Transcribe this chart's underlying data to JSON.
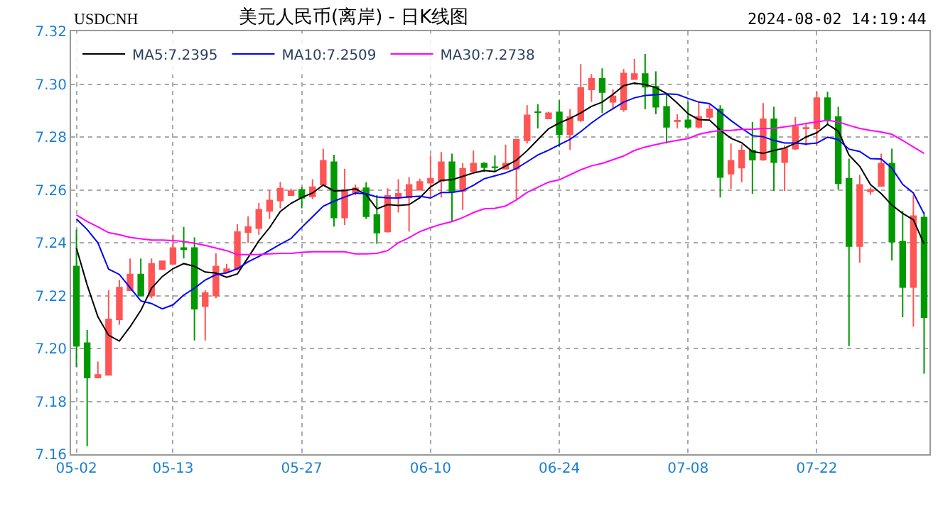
{
  "chart_data": {
    "type": "candlestick",
    "title": "美元人民币(离岸) - 日K线图",
    "subtitle": "USDCNH",
    "annotations": [
      "2024-08-02 14:19:44"
    ],
    "categories": [
      "05-02",
      null,
      null,
      null,
      null,
      null,
      null,
      null,
      null,
      "05-13",
      null,
      null,
      null,
      null,
      null,
      null,
      null,
      null,
      null,
      null,
      null,
      "05-27",
      null,
      null,
      null,
      null,
      null,
      null,
      null,
      null,
      null,
      null,
      null,
      "06-10",
      null,
      null,
      null,
      null,
      null,
      null,
      null,
      null,
      null,
      null,
      null,
      "06-24",
      null,
      null,
      null,
      null,
      null,
      null,
      null,
      null,
      null,
      null,
      null,
      "07-08",
      null,
      null,
      null,
      null,
      null,
      null,
      null,
      null,
      null,
      null,
      null,
      "07-22",
      null,
      null,
      null,
      null,
      null,
      null,
      null,
      null,
      null,
      null
    ],
    "ohlc": [
      [
        7.231,
        7.245,
        7.193,
        7.201
      ],
      [
        7.202,
        7.207,
        7.163,
        7.189
      ],
      [
        7.189,
        7.195,
        7.189,
        7.19
      ],
      [
        7.19,
        7.222,
        7.19,
        7.211
      ],
      [
        7.211,
        7.226,
        7.209,
        7.223
      ],
      [
        7.222,
        7.234,
        7.222,
        7.228
      ],
      [
        7.228,
        7.234,
        7.22,
        7.22
      ],
      [
        7.22,
        7.234,
        7.219,
        7.232
      ],
      [
        7.23,
        7.233,
        7.23,
        7.233
      ],
      [
        7.232,
        7.243,
        7.232,
        7.238
      ],
      [
        7.238,
        7.246,
        7.234,
        7.2375
      ],
      [
        7.238,
        7.242,
        7.203,
        7.215
      ],
      [
        7.216,
        7.222,
        7.203,
        7.221
      ],
      [
        7.22,
        7.236,
        7.219,
        7.231
      ],
      [
        7.229,
        7.232,
        7.229,
        7.23
      ],
      [
        7.23,
        7.247,
        7.2295,
        7.244
      ],
      [
        7.244,
        7.25,
        7.24,
        7.246
      ],
      [
        7.2455,
        7.255,
        7.243,
        7.2525
      ],
      [
        7.252,
        7.26,
        7.249,
        7.256
      ],
      [
        7.256,
        7.263,
        7.253,
        7.2605
      ],
      [
        7.258,
        7.2605,
        7.258,
        7.2595
      ],
      [
        7.26,
        7.261,
        7.253,
        7.257
      ],
      [
        7.2575,
        7.264,
        7.2565,
        7.261
      ],
      [
        7.262,
        7.2756,
        7.262,
        7.271
      ],
      [
        7.2705,
        7.2733,
        7.2461,
        7.2495
      ],
      [
        7.2495,
        7.268,
        7.2467,
        7.26
      ],
      [
        7.259,
        7.262,
        7.258,
        7.2606
      ],
      [
        7.2606,
        7.2629,
        7.249,
        7.25
      ],
      [
        7.2505,
        7.258,
        7.2396,
        7.2438
      ],
      [
        7.2442,
        7.2606,
        7.2438,
        7.2577
      ],
      [
        7.2575,
        7.264,
        7.2514,
        7.2585
      ],
      [
        7.2571,
        7.2648,
        7.2442,
        7.2619
      ],
      [
        7.26,
        7.2642,
        7.26,
        7.263
      ],
      [
        7.2627,
        7.273,
        7.2571,
        7.2642
      ],
      [
        7.2633,
        7.2743,
        7.2571,
        7.2705
      ],
      [
        7.2705,
        7.2737,
        7.2482,
        7.2596
      ],
      [
        7.2596,
        7.2701,
        7.2524,
        7.268
      ],
      [
        7.267,
        7.2749,
        7.267,
        7.2699
      ],
      [
        7.2699,
        7.2705,
        7.2667,
        7.2686
      ],
      [
        7.2686,
        7.273,
        7.2667,
        7.2685
      ],
      [
        7.268,
        7.2771,
        7.268,
        7.2699
      ],
      [
        7.268,
        7.2794,
        7.2566,
        7.279
      ],
      [
        7.2787,
        7.292,
        7.2775,
        7.2882
      ],
      [
        7.2894,
        7.2924,
        7.2832,
        7.2893
      ],
      [
        7.287,
        7.2895,
        7.2867,
        7.289
      ],
      [
        7.2893,
        7.2939,
        7.2762,
        7.281
      ],
      [
        7.281,
        7.2905,
        7.2752,
        7.2876
      ],
      [
        7.2863,
        7.3076,
        7.2857,
        7.2985
      ],
      [
        7.298,
        7.3038,
        7.2933,
        7.302
      ],
      [
        7.302,
        7.306,
        7.289,
        7.297
      ],
      [
        7.2933,
        7.298,
        7.2905,
        7.2954
      ],
      [
        7.2905,
        7.3057,
        7.2895,
        7.304
      ],
      [
        7.3019,
        7.3095,
        7.3019,
        7.3038
      ],
      [
        7.3038,
        7.3114,
        7.2905,
        7.299
      ],
      [
        7.299,
        7.3048,
        7.2886,
        7.2914
      ],
      [
        7.2914,
        7.2962,
        7.2775,
        7.2838
      ],
      [
        7.286,
        7.2886,
        7.2832,
        7.2862
      ],
      [
        7.2863,
        7.2933,
        7.2832,
        7.2838
      ],
      [
        7.2838,
        7.2933,
        7.2832,
        7.2876
      ],
      [
        7.2876,
        7.2924,
        7.2867,
        7.2905
      ],
      [
        7.2905,
        7.292,
        7.2571,
        7.2648
      ],
      [
        7.2661,
        7.2775,
        7.2604,
        7.271
      ],
      [
        7.2684,
        7.2771,
        7.2629,
        7.2749
      ],
      [
        7.2749,
        7.2857,
        7.2585,
        7.2714
      ],
      [
        7.2714,
        7.2928,
        7.271,
        7.2867
      ],
      [
        7.2867,
        7.2914,
        7.2596,
        7.2705
      ],
      [
        7.2705,
        7.2768,
        7.2596,
        7.2756
      ],
      [
        7.2756,
        7.2876,
        7.2752,
        7.2838
      ],
      [
        7.2832,
        7.2851,
        7.2768,
        7.2834
      ],
      [
        7.2832,
        7.2971,
        7.2768,
        7.2947
      ],
      [
        7.2947,
        7.2971,
        7.2848,
        7.2867
      ],
      [
        7.2876,
        7.2914,
        7.26,
        7.2625
      ],
      [
        7.2642,
        7.2718,
        7.2009,
        7.2387
      ],
      [
        7.2387,
        7.2657,
        7.2324,
        7.2619
      ],
      [
        7.2594,
        7.2609,
        7.2581,
        7.26
      ],
      [
        7.2615,
        7.2737,
        7.2615,
        7.2699
      ],
      [
        7.2699,
        7.2756,
        7.2333,
        7.2404
      ],
      [
        7.2404,
        7.252,
        7.2118,
        7.2232
      ],
      [
        7.2232,
        7.2581,
        7.2082,
        7.2501
      ],
      [
        7.2495,
        7.2514,
        7.1905,
        7.2118
      ]
    ],
    "colors": [
      "#009900",
      "#009900",
      "#ff5555",
      "#ff5555",
      "#ff5555",
      "#ff5555",
      "#009900",
      "#ff5555",
      "#ff5555",
      "#ff5555",
      "#009900",
      "#009900",
      "#ff5555",
      "#ff5555",
      "#ff5555",
      "#ff5555",
      "#ff5555",
      "#ff5555",
      "#ff5555",
      "#ff5555",
      "#ff5555",
      "#009900",
      "#ff5555",
      "#ff5555",
      "#009900",
      "#ff5555",
      "#ff5555",
      "#009900",
      "#009900",
      "#ff5555",
      "#ff5555",
      "#ff5555",
      "#ff5555",
      "#ff5555",
      "#ff5555",
      "#009900",
      "#ff5555",
      "#ff5555",
      "#009900",
      "#009900",
      "#ff5555",
      "#ff5555",
      "#ff5555",
      "#009900",
      "#ff5555",
      "#009900",
      "#ff5555",
      "#ff5555",
      "#ff5555",
      "#009900",
      "#ff5555",
      "#ff5555",
      "#ff5555",
      "#009900",
      "#009900",
      "#009900",
      "#ff5555",
      "#009900",
      "#ff5555",
      "#ff5555",
      "#009900",
      "#ff5555",
      "#ff5555",
      "#009900",
      "#ff5555",
      "#009900",
      "#ff5555",
      "#ff5555",
      "#ff5555",
      "#ff5555",
      "#009900",
      "#009900",
      "#009900",
      "#ff5555",
      "#ff5555",
      "#ff5555",
      "#009900",
      "#009900",
      "#ff5555",
      "#009900"
    ],
    "series": [
      {
        "name": "MA5:7.2395",
        "type": "line",
        "color": "#000000",
        "values": [
          7.238,
          7.224,
          7.212,
          7.205,
          7.2028,
          7.2082,
          7.2144,
          7.2228,
          7.2272,
          7.2302,
          7.2321,
          7.2311,
          7.2289,
          7.2285,
          7.2269,
          7.2282,
          7.2344,
          7.2407,
          7.2457,
          7.2518,
          7.2549,
          7.2571,
          7.2588,
          7.2618,
          7.2596,
          7.2597,
          7.2604,
          7.2582,
          7.2528,
          7.2544,
          7.2541,
          7.2544,
          7.257,
          7.2611,
          7.2636,
          7.2638,
          7.2651,
          7.2664,
          7.2673,
          7.2669,
          7.269,
          7.2712,
          7.2748,
          7.279,
          7.2831,
          7.2853,
          7.287,
          7.2891,
          7.2916,
          7.2932,
          7.2961,
          7.2994,
          7.3004,
          7.2998,
          7.2987,
          7.2964,
          7.2928,
          7.2888,
          7.2866,
          7.2864,
          7.2826,
          7.2795,
          7.2778,
          7.2745,
          7.2738,
          7.2749,
          7.2758,
          7.2776,
          7.28,
          7.2816,
          7.2848,
          7.2822,
          7.2732,
          7.2689,
          7.262,
          7.2586,
          7.2542,
          7.2511,
          7.2487,
          7.2395
        ]
      },
      {
        "name": "MA10:7.2509",
        "type": "line",
        "color": "#0000ff",
        "values": [
          7.249,
          7.245,
          7.24,
          7.23,
          7.228,
          7.223,
          7.218,
          7.217,
          7.215,
          7.2165,
          7.2202,
          7.2228,
          7.2259,
          7.2279,
          7.2286,
          7.2302,
          7.2328,
          7.2348,
          7.2371,
          7.2394,
          7.2416,
          7.2458,
          7.2498,
          7.2538,
          7.2557,
          7.2573,
          7.2588,
          7.2585,
          7.2573,
          7.257,
          7.2569,
          7.2574,
          7.2576,
          7.2569,
          7.259,
          7.259,
          7.2597,
          7.2617,
          7.2642,
          7.2653,
          7.2664,
          7.2681,
          7.2706,
          7.2732,
          7.275,
          7.2771,
          7.2791,
          7.282,
          7.2853,
          7.2882,
          7.2907,
          7.2932,
          7.2948,
          7.2957,
          7.296,
          7.2963,
          7.2961,
          7.2946,
          7.2932,
          7.2926,
          7.2895,
          7.2862,
          7.2833,
          7.2805,
          7.2801,
          7.2787,
          7.2777,
          7.2777,
          7.2773,
          7.2777,
          7.2799,
          7.279,
          7.2754,
          7.2745,
          7.2718,
          7.2717,
          7.2682,
          7.2621,
          7.2588,
          7.2509
        ]
      },
      {
        "name": "MA30:7.2738",
        "type": "line",
        "color": "#ff00ff",
        "values": [
          7.2505,
          7.248,
          7.246,
          7.2438,
          7.243,
          7.242,
          7.2415,
          7.241,
          7.241,
          7.2408,
          7.2405,
          7.2398,
          7.239,
          7.238,
          7.237,
          7.2355,
          7.2355,
          7.2356,
          7.2358,
          7.236,
          7.236,
          7.2364,
          7.2366,
          7.2366,
          7.2366,
          7.2366,
          7.2358,
          7.2358,
          7.236,
          7.237,
          7.24,
          7.2419,
          7.2442,
          7.2457,
          7.247,
          7.248,
          7.2495,
          7.2514,
          7.2528,
          7.253,
          7.2539,
          7.2562,
          7.259,
          7.261,
          7.2629,
          7.2638,
          7.2657,
          7.2676,
          7.2691,
          7.27,
          7.2714,
          7.2728,
          7.2749,
          7.2762,
          7.2771,
          7.278,
          7.2787,
          7.2794,
          7.281,
          7.2819,
          7.2825,
          7.2825,
          7.2829,
          7.2829,
          7.2832,
          7.2832,
          7.2838,
          7.2844,
          7.2851,
          7.2857,
          7.2863,
          7.2857,
          7.2844,
          7.2832,
          7.2825,
          7.2819,
          7.281,
          7.2787,
          7.2762,
          7.2738
        ]
      }
    ],
    "ylim": [
      7.16,
      7.32
    ],
    "yticks": [
      7.16,
      7.18,
      {
        "value": 7.2,
        "label": "7.20"
      },
      7.22,
      7.24,
      7.26,
      7.28,
      {
        "value": 7.3,
        "label": "7.30"
      },
      7.32
    ],
    "grid": true,
    "legend": "top left",
    "line_style": "solid",
    "marker": "none"
  }
}
